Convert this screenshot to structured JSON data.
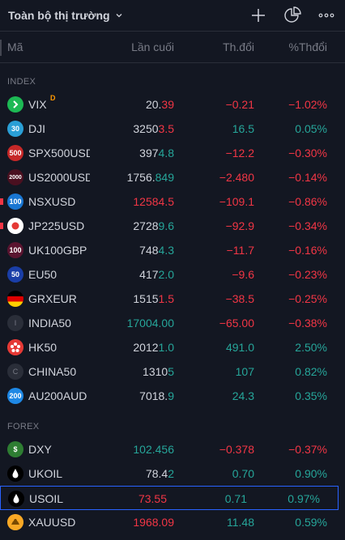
{
  "header": {
    "title": "Toàn bộ thị trường",
    "icons": [
      "chevron-down-icon",
      "add-icon",
      "pie-chart-icon",
      "more-icon"
    ]
  },
  "columns": {
    "symbol": "Mã",
    "last": "Lần cuối",
    "change": "Th.đổi",
    "change_pct": "%Thđổi"
  },
  "colors": {
    "background": "#131722",
    "up": "#26a69a",
    "down": "#f23645",
    "text": "#d1d4dc",
    "muted": "#787b86",
    "selection": "#2962ff"
  },
  "sections": [
    {
      "label": "INDEX",
      "rows": [
        {
          "symbol": "VIX",
          "badge": "D",
          "logo_text": "",
          "logo_icon": "chevron-right-icon",
          "logo_bg": "#1db954",
          "last_main": "20.",
          "last_tail": "39",
          "last_color": "neu",
          "tail_color": "dn",
          "change": "−0.21",
          "change_pct": "−1.02%",
          "dir": "dn"
        },
        {
          "symbol": "DJI",
          "logo_text": "30",
          "logo_bg": "#2a9fd6",
          "last_main": "3250",
          "last_tail": "3.5",
          "last_color": "neu",
          "tail_color": "dn",
          "change": "16.5",
          "change_pct": "0.05%",
          "dir": "up"
        },
        {
          "symbol": "SPX500USD",
          "logo_text": "500",
          "logo_bg": "#c62828",
          "last_main": "397",
          "last_tail": "4.8",
          "last_color": "neu",
          "tail_color": "up",
          "change": "−12.2",
          "change_pct": "−0.30%",
          "dir": "dn"
        },
        {
          "symbol": "US2000USD",
          "logo_text": "2000",
          "logo_bg": "#4a1020",
          "last_main": "1756.",
          "last_tail": "849",
          "last_color": "neu",
          "tail_color": "up",
          "change": "−2.480",
          "change_pct": "−0.14%",
          "dir": "dn"
        },
        {
          "symbol": "NSXUSD",
          "logo_text": "100",
          "logo_bg": "#1976d2",
          "last_main": "12584.5",
          "last_tail": "",
          "last_color": "dn",
          "tail_color": "dn",
          "change": "−109.1",
          "change_pct": "−0.86%",
          "dir": "dn",
          "mark": true
        },
        {
          "symbol": "JP225USD",
          "logo_text": "",
          "logo_icon": "japan-flag-icon",
          "logo_bg": "#ffffff",
          "last_main": "2728",
          "last_tail": "9.6",
          "last_color": "neu",
          "tail_color": "up",
          "change": "−92.9",
          "change_pct": "−0.34%",
          "dir": "dn",
          "mark": true
        },
        {
          "symbol": "UK100GBP",
          "logo_text": "100",
          "logo_bg": "#5a1430",
          "last_main": "748",
          "last_tail": "4.3",
          "last_color": "neu",
          "tail_color": "up",
          "change": "−11.7",
          "change_pct": "−0.16%",
          "dir": "dn"
        },
        {
          "symbol": "EU50",
          "logo_text": "50",
          "logo_bg": "#1a3ea8",
          "last_main": "417",
          "last_tail": "2.0",
          "last_color": "neu",
          "tail_color": "up",
          "change": "−9.6",
          "change_pct": "−0.23%",
          "dir": "dn"
        },
        {
          "symbol": "GRXEUR",
          "logo_text": "",
          "logo_icon": "germany-flag-icon",
          "logo_bg": "#000000",
          "last_main": "1515",
          "last_tail": "1.5",
          "last_color": "neu",
          "tail_color": "dn",
          "change": "−38.5",
          "change_pct": "−0.25%",
          "dir": "dn"
        },
        {
          "symbol": "INDIA50",
          "logo_text": "I",
          "logo_bg": "#2a2e39",
          "last_main": "17004.00",
          "last_tail": "",
          "last_color": "up",
          "tail_color": "up",
          "change": "−65.00",
          "change_pct": "−0.38%",
          "dir": "dn"
        },
        {
          "symbol": "HK50",
          "logo_text": "",
          "logo_icon": "hongkong-flag-icon",
          "logo_bg": "#e53935",
          "last_main": "2012",
          "last_tail": "1.0",
          "last_color": "neu",
          "tail_color": "up",
          "change": "491.0",
          "change_pct": "2.50%",
          "dir": "up"
        },
        {
          "symbol": "CHINA50",
          "logo_text": "C",
          "logo_bg": "#2a2e39",
          "last_main": "1310",
          "last_tail": "5",
          "last_color": "neu",
          "tail_color": "up",
          "change": "107",
          "change_pct": "0.82%",
          "dir": "up"
        },
        {
          "symbol": "AU200AUD",
          "logo_text": "200",
          "logo_bg": "#1e88e5",
          "last_main": "7018.",
          "last_tail": "9",
          "last_color": "neu",
          "tail_color": "up",
          "change": "24.3",
          "change_pct": "0.35%",
          "dir": "up"
        }
      ]
    },
    {
      "label": "FOREX",
      "rows": [
        {
          "symbol": "DXY",
          "logo_text": "$",
          "logo_bg": "#2e7d32",
          "last_main": "102.456",
          "last_tail": "",
          "last_color": "up",
          "tail_color": "up",
          "change": "−0.378",
          "change_pct": "−0.37%",
          "dir": "dn"
        },
        {
          "symbol": "UKOIL",
          "logo_text": "",
          "logo_icon": "oil-drop-icon",
          "logo_bg": "#000000",
          "last_main": "78.4",
          "last_tail": "2",
          "last_color": "neu",
          "tail_color": "up",
          "change": "0.70",
          "change_pct": "0.90%",
          "dir": "up"
        },
        {
          "symbol": "USOIL",
          "logo_text": "",
          "logo_icon": "oil-drop-icon",
          "logo_bg": "#000000",
          "last_main": "73.55",
          "last_tail": "",
          "last_color": "dn",
          "tail_color": "dn",
          "change": "0.71",
          "change_pct": "0.97%",
          "dir": "up",
          "selected": true
        },
        {
          "symbol": "XAUUSD",
          "logo_text": "",
          "logo_icon": "gold-bars-icon",
          "logo_bg": "#f9a825",
          "last_main": "1968.09",
          "last_tail": "",
          "last_color": "dn",
          "tail_color": "dn",
          "change": "11.48",
          "change_pct": "0.59%",
          "dir": "up"
        }
      ]
    }
  ]
}
